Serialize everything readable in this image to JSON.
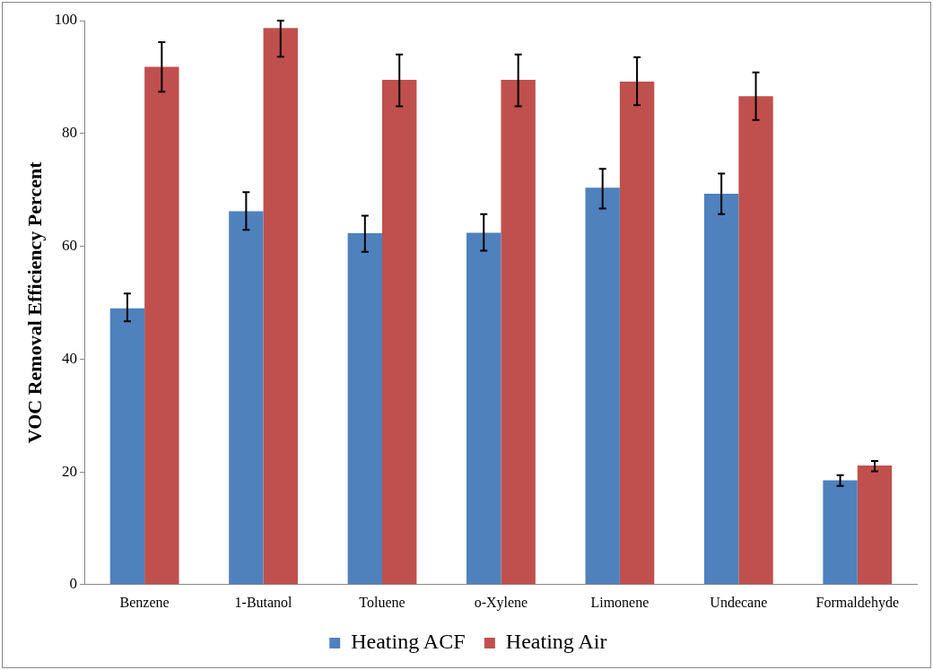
{
  "chart_data": {
    "type": "bar",
    "ylabel": "VOC Removal Efficiency Percent",
    "categories": [
      "Benzene",
      "1-Butanol",
      "Toluene",
      "o-Xylene",
      "Limonene",
      "Undecane",
      "Formaldehyde"
    ],
    "series": [
      {
        "name": "Heating ACF",
        "color": "#4f81bd",
        "values": [
          49.0,
          66.2,
          62.3,
          62.4,
          70.4,
          69.3,
          18.5
        ],
        "errors": [
          [
            46.7,
            51.6
          ],
          [
            62.9,
            69.6
          ],
          [
            59.0,
            65.4
          ],
          [
            59.2,
            65.7
          ],
          [
            66.7,
            73.7
          ],
          [
            65.7,
            72.9
          ],
          [
            17.5,
            19.4
          ]
        ]
      },
      {
        "name": "Heating Air",
        "color": "#c0504d",
        "values": [
          91.8,
          98.7,
          89.5,
          89.5,
          89.2,
          86.6,
          21.1
        ],
        "errors": [
          [
            87.4,
            96.2
          ],
          [
            93.6,
            100
          ],
          [
            84.8,
            94.0
          ],
          [
            84.8,
            94.0
          ],
          [
            85.0,
            93.5
          ],
          [
            82.4,
            90.8
          ],
          [
            20.1,
            21.9
          ]
        ]
      }
    ],
    "ylim": [
      0,
      100
    ],
    "yticks": [
      0,
      20,
      40,
      60,
      80,
      100
    ],
    "grid": false,
    "legend": "bottom"
  }
}
